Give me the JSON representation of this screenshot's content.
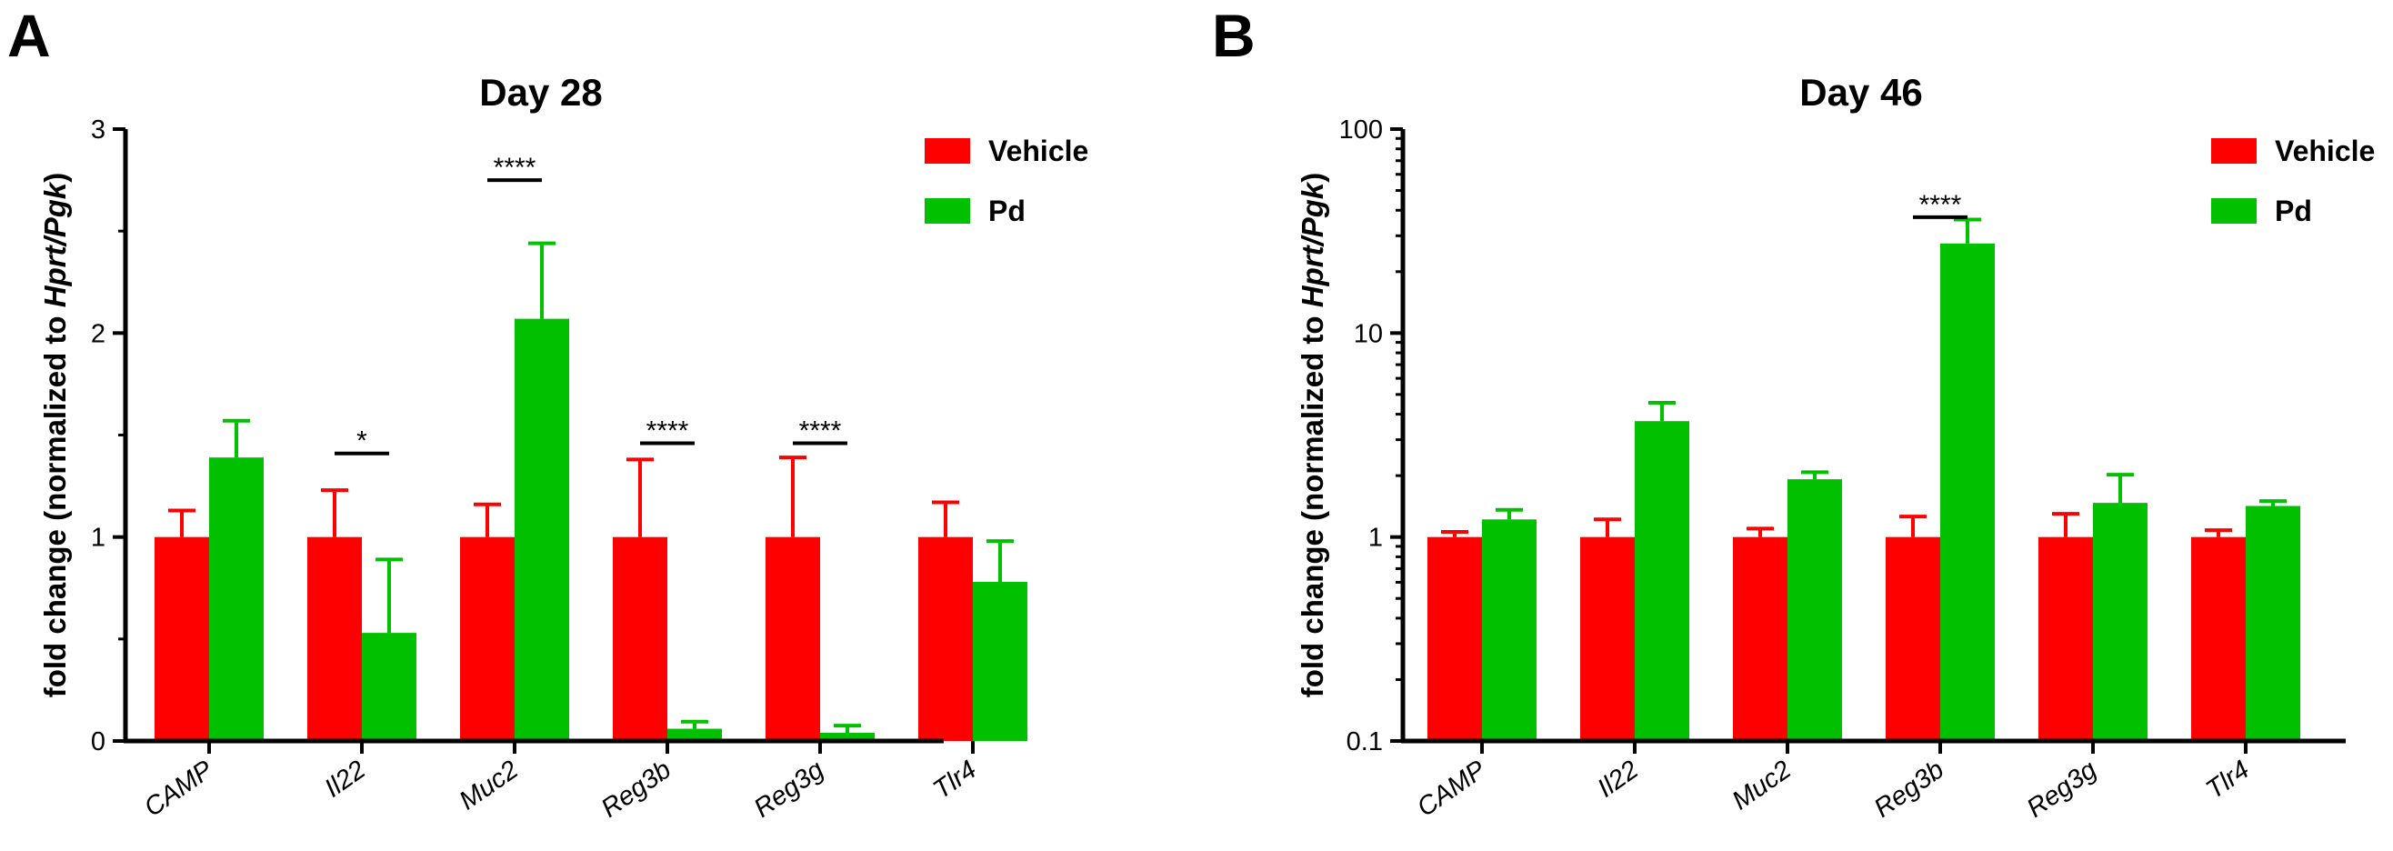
{
  "chart_data": [
    {
      "panel": "A",
      "type": "bar",
      "title": "Day 28",
      "ylabel_prefix": "fold change (normalized to ",
      "ylabel_italic": "Hprt/Pgk",
      "ylabel_suffix": ")",
      "yscale": "linear",
      "ylim": [
        0,
        3
      ],
      "yticks": [
        0,
        1,
        2,
        3
      ],
      "ytick_labels": [
        "0",
        "1",
        "2",
        "3"
      ],
      "categories": [
        "CAMP",
        "Il22",
        "Muc2",
        "Reg3b",
        "Reg3g",
        "Tlr4"
      ],
      "series": [
        {
          "name": "Vehicle",
          "color": "#ff0000",
          "values": [
            1,
            1,
            1,
            1,
            1,
            1
          ],
          "errors": [
            0.13,
            0.23,
            0.16,
            0.38,
            0.39,
            0.17
          ]
        },
        {
          "name": "Pd",
          "color": "#00c000",
          "values": [
            1.39,
            0.53,
            2.07,
            0.06,
            0.04,
            0.78
          ],
          "errors": [
            0.18,
            0.36,
            0.37,
            0.035,
            0.035,
            0.2
          ]
        }
      ],
      "significance": [
        {
          "category": "Il22",
          "label": "*",
          "y": 1.41
        },
        {
          "category": "Muc2",
          "label": "****",
          "y": 2.75
        },
        {
          "category": "Reg3b",
          "label": "****",
          "y": 1.46
        },
        {
          "category": "Reg3g",
          "label": "****",
          "y": 1.46
        }
      ]
    },
    {
      "panel": "B",
      "type": "bar",
      "title": "Day 46",
      "ylabel_prefix": "fold change (normalized to ",
      "ylabel_italic": "Hprt/Pgk",
      "ylabel_suffix": ")",
      "yscale": "log",
      "ylim": [
        0.1,
        100
      ],
      "yticks": [
        0.1,
        1,
        10,
        100
      ],
      "ytick_labels": [
        "0.1",
        "1",
        "10",
        "100"
      ],
      "categories": [
        "CAMP",
        "Il22",
        "Muc2",
        "Reg3b",
        "Reg3g",
        "Tlr4"
      ],
      "series": [
        {
          "name": "Vehicle",
          "color": "#ff0000",
          "values": [
            1,
            1,
            1,
            1,
            1,
            1
          ],
          "errors": [
            0.06,
            0.22,
            0.1,
            0.26,
            0.3,
            0.08
          ]
        },
        {
          "name": "Pd",
          "color": "#00c000",
          "values": [
            1.22,
            3.7,
            1.92,
            27.5,
            1.47,
            1.42
          ],
          "errors": [
            0.14,
            0.85,
            0.16,
            8.5,
            0.55,
            0.08
          ]
        }
      ],
      "significance": [
        {
          "category": "Reg3b",
          "label": "****",
          "y": 37
        }
      ]
    }
  ]
}
